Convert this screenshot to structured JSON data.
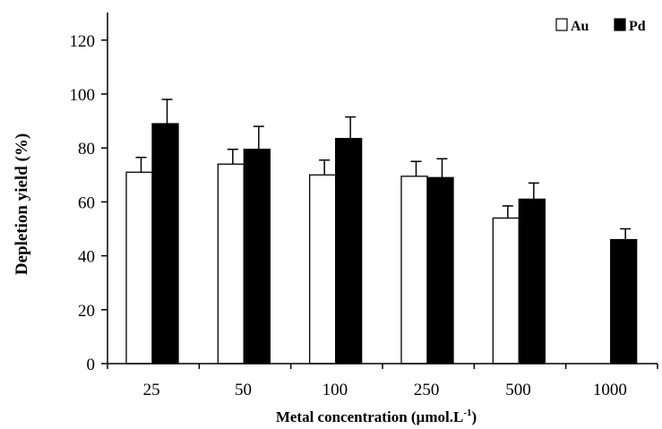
{
  "chart_data": {
    "type": "bar",
    "xlabel": "Metal concentration (µmol.L",
    "xlabel_sup": "-1",
    "xlabel_end": ")",
    "ylabel": "Depletion yield (%)",
    "categories": [
      "25",
      "50",
      "100",
      "250",
      "500",
      "1000"
    ],
    "ylim": [
      0,
      130
    ],
    "yticks": [
      "0",
      "20",
      "40",
      "60",
      "80",
      "100",
      "120"
    ],
    "legend_position": "top-right",
    "series": [
      {
        "name": "Au",
        "color": "#ffffff",
        "values": [
          71,
          74,
          70,
          69.5,
          54,
          0
        ],
        "errors": [
          5.5,
          5.5,
          5.5,
          5.5,
          4.5,
          0
        ]
      },
      {
        "name": "Pd",
        "color": "#000000",
        "values": [
          89,
          79.5,
          83.5,
          69,
          61,
          46
        ],
        "errors": [
          9,
          8.5,
          8,
          7,
          6,
          4
        ]
      }
    ]
  }
}
